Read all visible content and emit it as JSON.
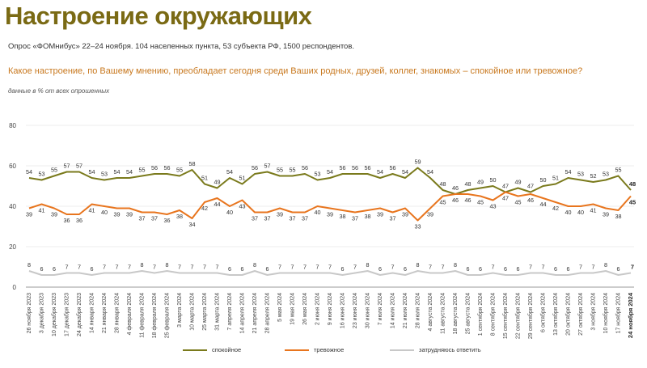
{
  "header": {
    "title": "Настроение окружающих",
    "subtitle": "Опрос «ФОМнибус» 22–24 ноября. 104 населенных пункта, 53 субъекта РФ, 1500 респондентов.",
    "question": "Какое настроение, по Вашему мнению, преобладает сегодня среди Ваших родных, друзей, коллег, знакомых – спокойное или тревожное?",
    "units": "данные в % от всех опрошенных"
  },
  "legend": {
    "calm": "спокойное",
    "anxious": "тревожное",
    "unsure": "затрудняюсь ответить"
  },
  "colors": {
    "calm": "#7a7a1c",
    "anxious": "#e8751e",
    "unsure": "#c8c8c8",
    "title": "#7a6a14",
    "question": "#c8781e"
  },
  "chart_data": {
    "type": "line",
    "ylim": [
      0,
      80
    ],
    "yticks": [
      0,
      20,
      40,
      60,
      80
    ],
    "grid": true,
    "legend_position": "bottom",
    "categories": [
      "26 ноября 2023",
      "3 декабря 2023",
      "10 декабря 2023",
      "17 декабря 2023",
      "24 декабря 2023",
      "14 января 2024",
      "21 января 2024",
      "28 января 2024",
      "4 февраля 2024",
      "11 февраля 2024",
      "18 февраля 2024",
      "25 февраля 2024",
      "3 марта 2024",
      "10 марта 2024",
      "25 марта 2024",
      "31 марта 2024",
      "7 апреля 2024",
      "14 апреля 2024",
      "21 апреля 2024",
      "28 апреля 2024",
      "5 мая 2024",
      "19 мая 2024",
      "26 мая 2024",
      "2 июня 2024",
      "9 июня 2024",
      "16 июня 2024",
      "23 июня 2024",
      "30 июня 2024",
      "7 июля 2024",
      "14 июля 2024",
      "21 июля 2024",
      "28 июля 2024",
      "4 августа 2024",
      "11 августа 2024",
      "18 августа 2024",
      "25 августа 2024",
      "1 сентября 2024",
      "8 сентября 2024",
      "15 сентября 2024",
      "22 сентября 2024",
      "29 сентября 2024",
      "6 октября 2024",
      "13 октября 2024",
      "20 октября 2024",
      "27 октября 2024",
      "3 ноября 2024",
      "10 ноября 2024",
      "17 ноября 2024",
      "24 ноября 2024"
    ],
    "series": [
      {
        "key": "calm",
        "name": "спокойное",
        "values": [
          54,
          53,
          55,
          57,
          57,
          54,
          53,
          54,
          54,
          55,
          56,
          56,
          55,
          58,
          51,
          49,
          54,
          51,
          56,
          57,
          55,
          55,
          56,
          53,
          54,
          56,
          56,
          56,
          54,
          56,
          54,
          59,
          54,
          48,
          46,
          48,
          49,
          50,
          47,
          49,
          47,
          50,
          51,
          54,
          53,
          52,
          53,
          55,
          48
        ]
      },
      {
        "key": "anxious",
        "name": "тревожное",
        "values": [
          39,
          41,
          39,
          36,
          36,
          41,
          40,
          39,
          39,
          37,
          37,
          36,
          38,
          34,
          42,
          44,
          40,
          43,
          37,
          37,
          39,
          37,
          37,
          40,
          39,
          38,
          37,
          38,
          39,
          37,
          39,
          33,
          39,
          45,
          46,
          46,
          45,
          43,
          47,
          45,
          46,
          44,
          42,
          40,
          40,
          41,
          39,
          38,
          45
        ]
      },
      {
        "key": "unsure",
        "name": "затрудняюсь ответить",
        "values": [
          8,
          6,
          6,
          7,
          7,
          6,
          7,
          7,
          7,
          8,
          7,
          8,
          7,
          7,
          7,
          7,
          6,
          6,
          8,
          6,
          7,
          7,
          7,
          7,
          7,
          6,
          7,
          8,
          6,
          7,
          6,
          8,
          7,
          7,
          8,
          6,
          6,
          7,
          6,
          6,
          7,
          7,
          6,
          6,
          7,
          7,
          8,
          6,
          7
        ]
      }
    ]
  }
}
